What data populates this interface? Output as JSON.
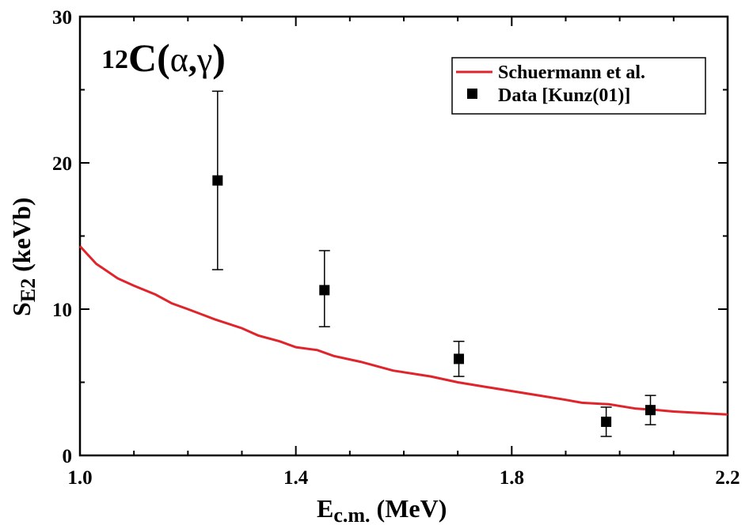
{
  "chart_data": {
    "type": "line",
    "panel_label": {
      "prefix": "12",
      "main": "C(",
      "alpha": "α",
      "comma": ",",
      "gamma": "γ",
      "close": ")"
    },
    "xlabel": {
      "main": "E",
      "sub": "c.m.",
      "rest": " (MeV)"
    },
    "ylabel": {
      "main": "S",
      "sub": "E2",
      "rest": " (keVb)"
    },
    "xlim": [
      1.0,
      2.2
    ],
    "ylim": [
      0,
      30
    ],
    "x_ticks": [
      1.0,
      1.4,
      1.8,
      2.2
    ],
    "x_tick_labels": [
      "1.0",
      "1.4",
      "1.8",
      "2.2"
    ],
    "y_ticks": [
      0,
      10,
      20,
      30
    ],
    "y_tick_labels": [
      "0",
      "10",
      "20",
      "30"
    ],
    "legend_position": "top-right",
    "series": [
      {
        "name": "Schuermann et al.",
        "kind": "line",
        "color": "#e0242b",
        "x": [
          1.0,
          1.03,
          1.07,
          1.1,
          1.14,
          1.17,
          1.2,
          1.25,
          1.3,
          1.33,
          1.37,
          1.4,
          1.44,
          1.47,
          1.52,
          1.58,
          1.65,
          1.7,
          1.75,
          1.8,
          1.85,
          1.9,
          1.93,
          1.98,
          2.03,
          2.07,
          2.1,
          2.15,
          2.2
        ],
        "y": [
          14.3,
          13.1,
          12.1,
          11.6,
          11.0,
          10.4,
          10.0,
          9.3,
          8.7,
          8.2,
          7.8,
          7.4,
          7.2,
          6.8,
          6.4,
          5.8,
          5.4,
          5.0,
          4.7,
          4.4,
          4.1,
          3.8,
          3.6,
          3.5,
          3.2,
          3.1,
          3.0,
          2.9,
          2.8
        ]
      },
      {
        "name": "Data [Kunz(01)]",
        "kind": "scatter",
        "color": "#000000",
        "points": [
          {
            "x": 1.255,
            "y": 18.8,
            "ylow": 12.7,
            "yhigh": 24.9
          },
          {
            "x": 1.453,
            "y": 11.3,
            "ylow": 8.8,
            "yhigh": 14.0
          },
          {
            "x": 1.702,
            "y": 6.6,
            "ylow": 5.4,
            "yhigh": 7.8
          },
          {
            "x": 1.975,
            "y": 2.3,
            "ylow": 1.3,
            "yhigh": 3.3
          },
          {
            "x": 2.057,
            "y": 3.1,
            "ylow": 2.1,
            "yhigh": 4.1
          }
        ]
      }
    ]
  }
}
